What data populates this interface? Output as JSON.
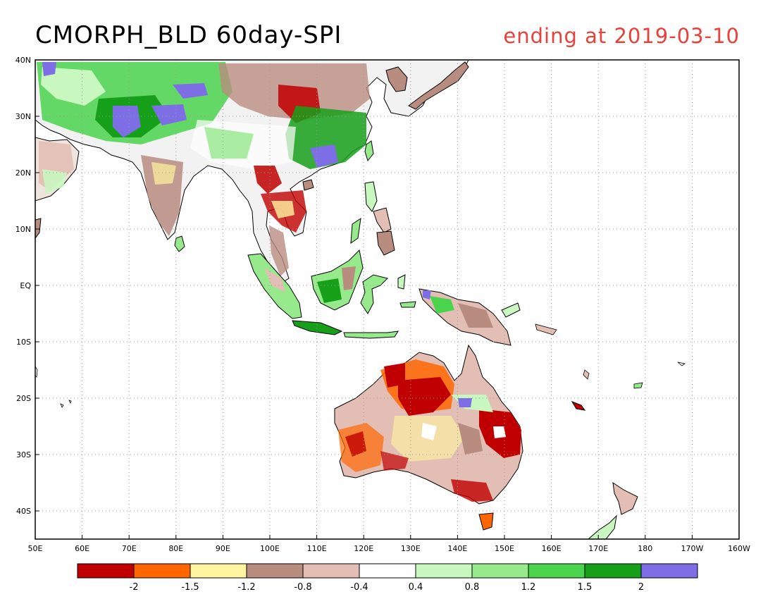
{
  "header": {
    "title": "CMORPH_BLD 60day-SPI",
    "subtitle": "ending at 2019-03-10",
    "subtitle_color": "#e8403a"
  },
  "map": {
    "region": "Asia-Pacific",
    "lon_range": [
      50,
      200
    ],
    "lat_range": [
      -45,
      40
    ],
    "grid": "dotted",
    "lon_labels": [
      "50E",
      "60E",
      "70E",
      "80E",
      "90E",
      "100E",
      "110E",
      "120E",
      "130E",
      "140E",
      "150E",
      "160E",
      "170E",
      "180",
      "170W",
      "160W"
    ],
    "lat_labels": [
      "40N",
      "30N",
      "20N",
      "10N",
      "EQ",
      "10S",
      "20S",
      "30S",
      "40S"
    ]
  },
  "legend": {
    "colors": [
      "#c00000",
      "#ff6600",
      "#fff5a0",
      "#b98c80",
      "#e3beb4",
      "#ffffff",
      "#c8f7c0",
      "#96ea8c",
      "#4ad44e",
      "#16a01a",
      "#7d6ee6"
    ],
    "labels": [
      "-2",
      "-1.5",
      "-1.2",
      "-0.8",
      "-0.4",
      "0.4",
      "0.8",
      "1.2",
      "1.5",
      "2"
    ]
  }
}
